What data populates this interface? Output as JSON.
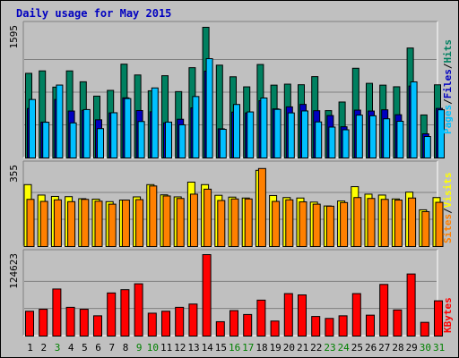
{
  "title": "Daily usage for May 2015",
  "chart_data": [
    {
      "type": "bar",
      "title": "Daily usage for May 2015",
      "categories": [
        "1",
        "2",
        "3",
        "4",
        "5",
        "6",
        "7",
        "8",
        "9",
        "10",
        "11",
        "12",
        "13",
        "14",
        "15",
        "16",
        "17",
        "18",
        "19",
        "20",
        "21",
        "22",
        "23",
        "24",
        "25",
        "26",
        "27",
        "28",
        "29",
        "30",
        "31"
      ],
      "weekend_days": [
        "3",
        "9",
        "10",
        "16",
        "17",
        "23",
        "24",
        "30",
        "31"
      ],
      "ymax_label": "1595",
      "ymax": 1595,
      "series": [
        {
          "name": "Hits",
          "color": "#008060",
          "values": [
            1033,
            1063,
            865,
            1063,
            930,
            755,
            825,
            1145,
            1013,
            820,
            1004,
            810,
            1102,
            1595,
            1133,
            991,
            868,
            1141,
            889,
            901,
            894,
            993,
            578,
            683,
            1095,
            911,
            889,
            869,
            1342,
            525,
            893
          ]
        },
        {
          "name": "Files",
          "color": "#0000c0",
          "values": [
            604,
            438,
            714,
            573,
            582,
            466,
            550,
            734,
            579,
            564,
            429,
            473,
            612,
            1060,
            356,
            560,
            550,
            699,
            599,
            624,
            654,
            577,
            518,
            381,
            584,
            573,
            588,
            528,
            878,
            295,
            605
          ]
        },
        {
          "name": "Pages",
          "color": "#00c0ff",
          "values": [
            714,
            436,
            890,
            428,
            591,
            358,
            552,
            725,
            445,
            855,
            438,
            405,
            750,
            1212,
            350,
            653,
            562,
            732,
            593,
            550,
            574,
            440,
            377,
            344,
            523,
            515,
            478,
            448,
            929,
            262,
            588
          ]
        }
      ]
    },
    {
      "type": "bar",
      "ymax_label": "355",
      "ymax": 355,
      "series": [
        {
          "name": "Visits",
          "color": "#ffff00",
          "values": [
            273,
            227,
            221,
            220,
            211,
            209,
            198,
            205,
            219,
            273,
            228,
            219,
            284,
            273,
            226,
            218,
            214,
            336,
            225,
            216,
            214,
            196,
            179,
            201,
            264,
            231,
            227,
            210,
            240,
            162,
            216
          ]
        },
        {
          "name": "Sites",
          "color": "#ff8000",
          "values": [
            208,
            199,
            206,
            198,
            208,
            200,
            187,
            205,
            207,
            267,
            223,
            212,
            231,
            253,
            203,
            210,
            210,
            344,
            199,
            206,
            197,
            187,
            178,
            194,
            216,
            212,
            208,
            205,
            214,
            154,
            195
          ]
        }
      ]
    },
    {
      "type": "bar",
      "ymax_label": "124623",
      "ymax": 124623,
      "series": [
        {
          "name": "KBytes",
          "color": "#ff0000",
          "values": [
            38000,
            41000,
            72000,
            44000,
            41000,
            31000,
            66000,
            71000,
            80000,
            35000,
            38000,
            44000,
            49000,
            124623,
            22000,
            39000,
            33000,
            55000,
            23000,
            65000,
            63000,
            30000,
            27000,
            31000,
            65000,
            32000,
            79000,
            40000,
            95000,
            21000,
            54000
          ]
        }
      ]
    }
  ]
}
